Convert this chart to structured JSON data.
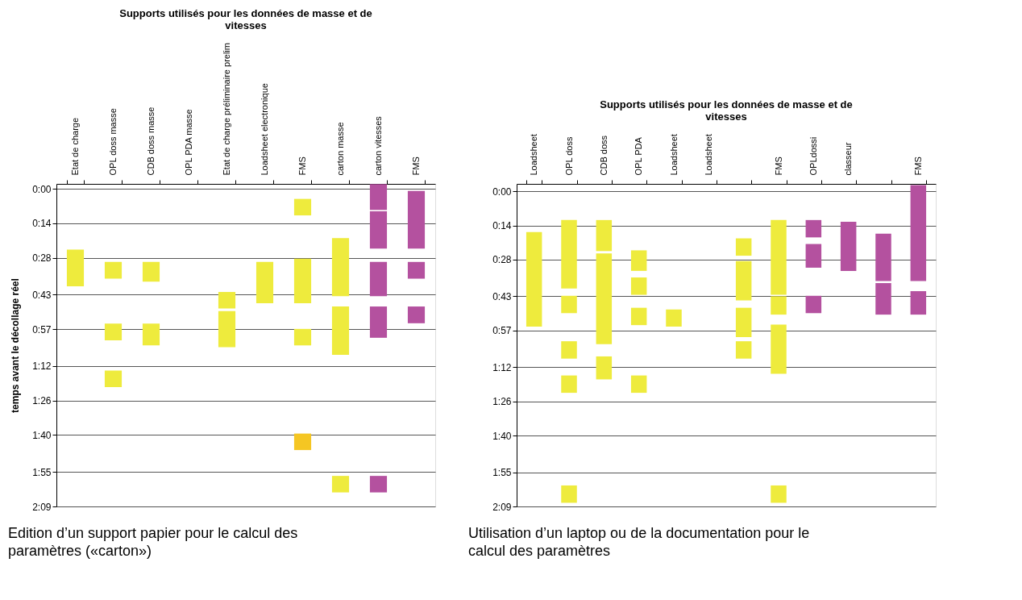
{
  "chart_data": [
    {
      "type": "bar",
      "title": "Supports utilisés pour les données de masse et de vitesses",
      "ylabel": "temps avant le décollage réel",
      "categories": [
        "Etat de charge",
        "OPL doss  masse",
        "CDB doss masse",
        "OPL PDA masse",
        "Etat de charge préliminaire prelim",
        "Loadsheet electronique",
        "FMS",
        "carton masse",
        "carton vitesses",
        "FMS"
      ],
      "ylim": [
        129,
        -2
      ],
      "yticks": [
        {
          "value": 0,
          "label": "0:00"
        },
        {
          "value": 14,
          "label": "0:14"
        },
        {
          "value": 28,
          "label": "0:28"
        },
        {
          "value": 43,
          "label": "0:43"
        },
        {
          "value": 57,
          "label": "0:57"
        },
        {
          "value": 72,
          "label": "1:12"
        },
        {
          "value": 86,
          "label": "1:26"
        },
        {
          "value": 100,
          "label": "1:40"
        },
        {
          "value": 115,
          "label": "1:55"
        },
        {
          "value": 129,
          "label": "2:09"
        }
      ],
      "grid": "y",
      "series": [
        {
          "base": [
            24.7,
            29.7,
            29.7,
            null,
            41.9,
            29.7,
            4.1,
            20,
            -1.9,
            0.9
          ],
          "values": [
            14.9,
            6.8,
            8,
            null,
            6.7,
            16.8,
            6.7,
            23.6,
            10.5,
            23.4
          ],
          "colors": [
            "#eeeb3d",
            "#eeeb3d",
            "#eeeb3d",
            null,
            "#eeeb3d",
            "#eeeb3d",
            "#eeeb3d",
            "#eeeb3d",
            "#b4519f",
            "#b4519f"
          ]
        },
        {
          "base": [
            null,
            54.7,
            54.7,
            null,
            49.7,
            null,
            28.4,
            47.8,
            9.1,
            29.7
          ],
          "values": [
            null,
            6.8,
            8.9,
            null,
            14.6,
            null,
            18.1,
            19.6,
            15.2,
            6.8
          ],
          "colors": [
            null,
            "#eeeb3d",
            "#eeeb3d",
            null,
            "#eeeb3d",
            null,
            "#eeeb3d",
            "#eeeb3d",
            "#b4519f",
            "#b4519f"
          ]
        },
        {
          "base": [
            null,
            73.8,
            null,
            null,
            null,
            null,
            56.9,
            116.6,
            29.7,
            47.8
          ],
          "values": [
            null,
            6.7,
            null,
            null,
            null,
            null,
            6.7,
            6.7,
            13.9,
            6.8
          ],
          "colors": [
            null,
            "#eeeb3d",
            null,
            null,
            null,
            null,
            "#eeeb3d",
            "#eeeb3d",
            "#b4519f",
            "#b4519f"
          ]
        },
        {
          "base": [
            null,
            null,
            null,
            null,
            null,
            null,
            99.4,
            null,
            47.8,
            null
          ],
          "values": [
            null,
            null,
            null,
            null,
            null,
            null,
            6.7,
            null,
            12.7,
            null
          ],
          "colors": [
            null,
            null,
            null,
            null,
            null,
            null,
            "#f5c623",
            null,
            "#b4519f",
            null
          ]
        },
        {
          "base": [
            null,
            null,
            null,
            null,
            null,
            null,
            null,
            null,
            116.6,
            null
          ],
          "values": [
            null,
            null,
            null,
            null,
            null,
            null,
            null,
            null,
            6.7,
            null
          ],
          "colors": [
            null,
            null,
            null,
            null,
            null,
            null,
            null,
            null,
            "#b4519f",
            null
          ]
        }
      ],
      "annotations": [
        "Edition d’un support papier pour le calcul des paramètres («carton»)"
      ]
    },
    {
      "type": "bar",
      "title": "Supports utilisés pour les données de masse et de vitesses",
      "categories": [
        "Loadsheet",
        "OPL doss",
        "CDB doss",
        "OPL PDA",
        "Loadsheet",
        "Loadsheet",
        null,
        "FMS",
        "OPLdossi",
        "classeur",
        null,
        "FMS"
      ],
      "ylim": [
        129,
        -3
      ],
      "yticks": [
        {
          "value": 0,
          "label": "0:00"
        },
        {
          "value": 14,
          "label": "0:14"
        },
        {
          "value": 28,
          "label": "0:28"
        },
        {
          "value": 43,
          "label": "0:43"
        },
        {
          "value": 57,
          "label": "0:57"
        },
        {
          "value": 72,
          "label": "1:12"
        },
        {
          "value": 86,
          "label": "1:26"
        },
        {
          "value": 100,
          "label": "1:40"
        },
        {
          "value": 115,
          "label": "1:55"
        },
        {
          "value": 129,
          "label": "2:09"
        }
      ],
      "grid": "y",
      "series": [
        {
          "base": [
            16.7,
            11.8,
            11.8,
            24.2,
            48.4,
            null,
            19.3,
            11.8,
            11.8,
            12.5,
            17.4,
            -2.5
          ],
          "values": [
            38.7,
            28,
            12.7,
            8.4,
            7,
            null,
            7.1,
            30.6,
            7.1,
            20.1,
            19.4,
            39.3
          ],
          "colors": [
            "#eeeb3d",
            "#eeeb3d",
            "#eeeb3d",
            "#eeeb3d",
            "#eeeb3d",
            null,
            "#eeeb3d",
            "#eeeb3d",
            "#b4519f",
            "#b4519f",
            "#b4519f",
            "#b4519f"
          ]
        },
        {
          "base": [
            null,
            42.8,
            25.5,
            35.3,
            null,
            null,
            28.6,
            43,
            21.6,
            null,
            37.6,
            40.9
          ],
          "values": [
            null,
            7.1,
            37.1,
            7.1,
            null,
            null,
            16.1,
            7.5,
            9.7,
            null,
            12.9,
            9.6
          ],
          "colors": [
            null,
            "#eeeb3d",
            "#eeeb3d",
            "#eeeb3d",
            null,
            null,
            "#eeeb3d",
            "#eeeb3d",
            "#b4519f",
            null,
            "#b4519f",
            "#b4519f"
          ]
        },
        {
          "base": [
            null,
            61.4,
            67.6,
            47.7,
            null,
            null,
            47.7,
            54.6,
            42.8,
            null,
            null,
            null
          ],
          "values": [
            null,
            7.1,
            9.4,
            7.1,
            null,
            null,
            12,
            20.1,
            7.1,
            null,
            null,
            null
          ],
          "colors": [
            null,
            "#eeeb3d",
            "#eeeb3d",
            "#eeeb3d",
            null,
            null,
            "#eeeb3d",
            "#eeeb3d",
            "#b4519f",
            null,
            null,
            null
          ]
        },
        {
          "base": [
            null,
            75.4,
            null,
            75.4,
            null,
            null,
            61.4,
            120.4,
            null,
            null,
            null,
            null
          ],
          "values": [
            null,
            7.1,
            null,
            7.1,
            null,
            null,
            7.1,
            7.1,
            null,
            null,
            null,
            null
          ],
          "colors": [
            null,
            "#eeeb3d",
            null,
            "#eeeb3d",
            null,
            null,
            "#eeeb3d",
            "#eeeb3d",
            null,
            null,
            null,
            null
          ]
        },
        {
          "base": [
            null,
            120.4,
            null,
            null,
            null,
            null,
            null,
            null,
            null,
            null,
            null,
            null
          ],
          "values": [
            null,
            7.1,
            null,
            null,
            null,
            null,
            null,
            null,
            null,
            null,
            null,
            null
          ],
          "colors": [
            null,
            "#eeeb3d",
            null,
            null,
            null,
            null,
            null,
            null,
            null,
            null,
            null,
            null
          ]
        }
      ],
      "annotations": [
        "Utilisation d’un laptop ou de la documentation pour le calcul des paramètres"
      ]
    }
  ]
}
